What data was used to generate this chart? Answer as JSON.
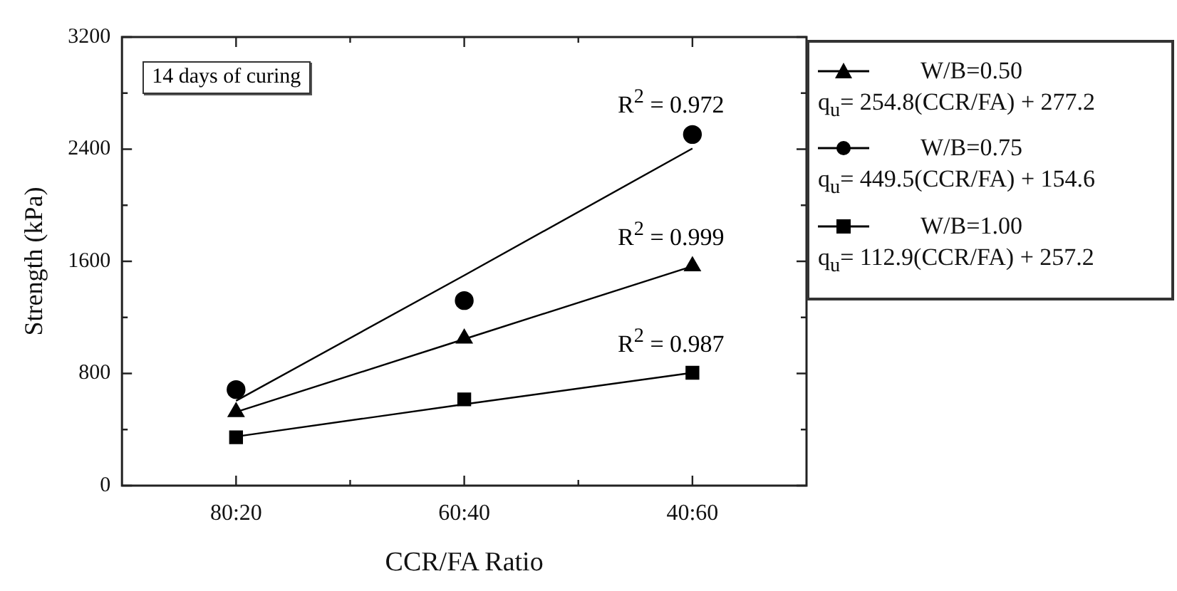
{
  "chart_data": {
    "type": "scatter",
    "xlabel": "CCR/FA Ratio",
    "ylabel": "Strength (kPa)",
    "categories": [
      "80:20",
      "60:40",
      "40:60"
    ],
    "ylim": [
      0,
      3200
    ],
    "yticks": [
      0,
      800,
      1600,
      2400,
      3200
    ],
    "grid": false,
    "legend": "right",
    "series": [
      {
        "name": "W/B=0.50",
        "marker": "triangle",
        "color": "#000000",
        "values": [
          525,
          1050,
          1565
        ]
      },
      {
        "type": "line",
        "marker": "none",
        "color": "#000000",
        "values": [
          525,
          1045,
          1565
        ]
      },
      {
        "name": "W/B=0.75",
        "marker": "circle",
        "color": "#000000",
        "values": [
          685,
          1320,
          2505
        ]
      },
      {
        "type": "line",
        "marker": "none",
        "color": "#000000",
        "values": [
          605,
          1500,
          2405
        ]
      },
      {
        "name": "W/B=1.00",
        "marker": "square",
        "color": "#000000",
        "values": [
          345,
          615,
          805
        ]
      },
      {
        "type": "line",
        "marker": "none",
        "color": "#000000",
        "values": [
          350,
          580,
          805
        ]
      }
    ],
    "annotations": [
      "14 days of curing",
      "q$_{u}$= 254.8(CCR/FA) + 277.2",
      "q$_{u}$= 449.5(CCR/FA) + 154.6",
      "q$_{u}$= 112.9(CCR/FA) + 257.2",
      {
        "text": "R$^{2}$ = 0.972",
        "x": "40:60",
        "y": 2505
      },
      {
        "text": "R$^{2}$ = 0.999",
        "x": "40:60",
        "y": 1565
      },
      {
        "text": "R$^{2}$ = 0.987",
        "x": "40:60",
        "y": 805
      }
    ]
  }
}
